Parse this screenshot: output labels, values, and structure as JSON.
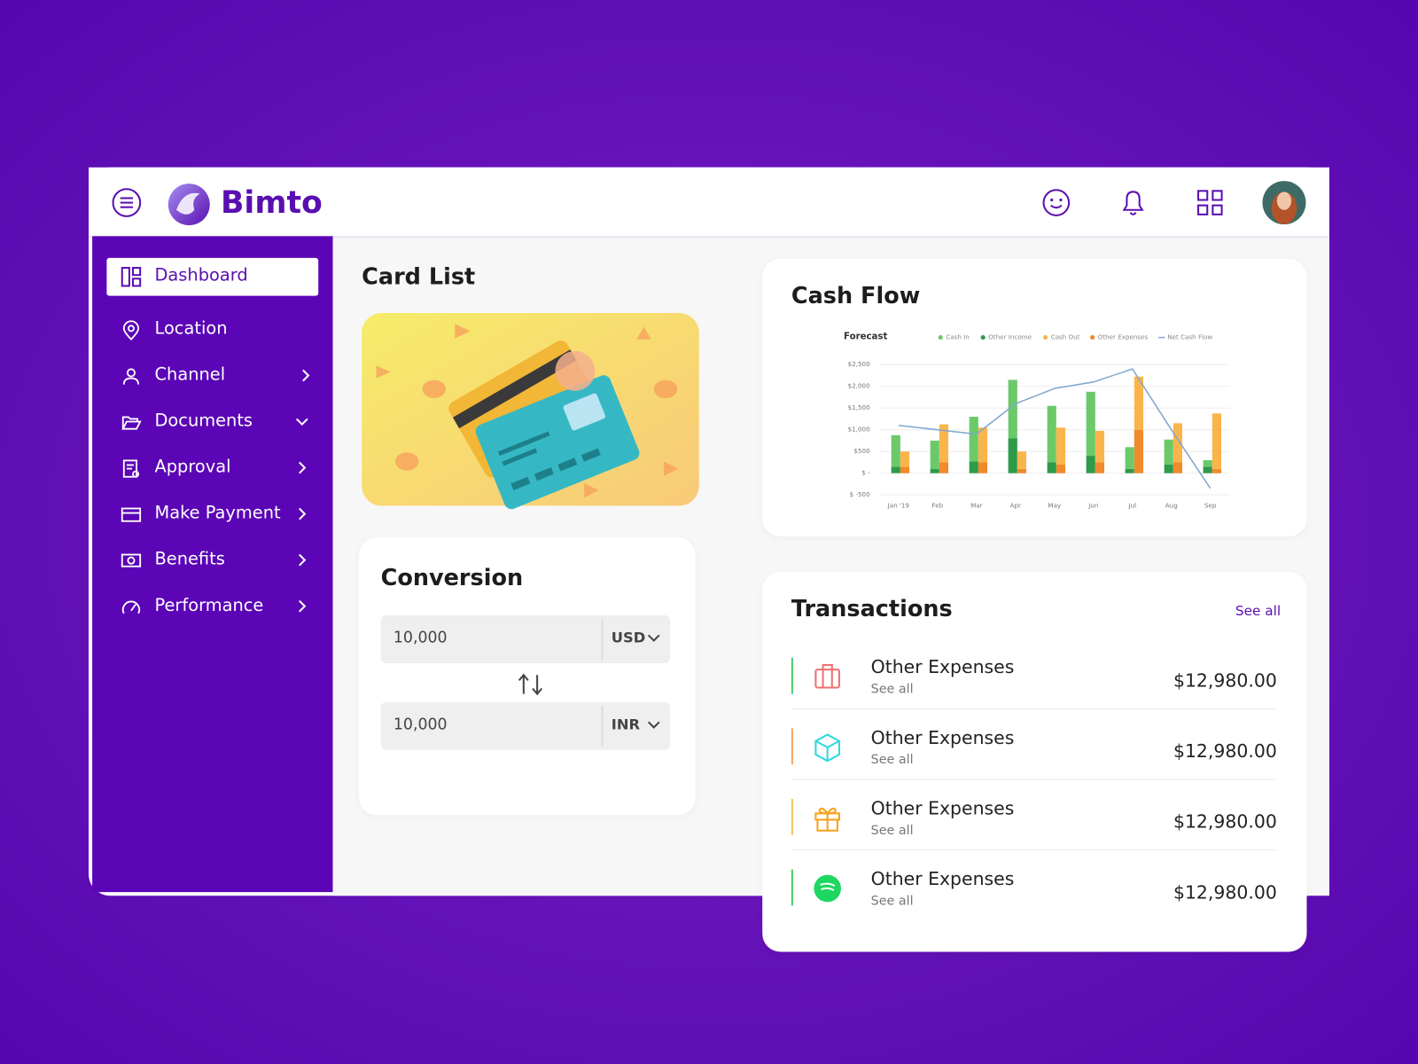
{
  "header": {
    "brand": "Bimto"
  },
  "sidebar": {
    "items": [
      "Dashboard",
      "Location",
      "Channel",
      "Documents",
      "Approval",
      "Make Payment",
      "Benefits",
      "Performance"
    ]
  },
  "card_list": {
    "title": "Card List"
  },
  "conversion": {
    "title": "Conversion",
    "from": {
      "amount": "10,000",
      "currency": "USD"
    },
    "to": {
      "amount": "10,000",
      "currency": "INR"
    }
  },
  "cash_flow": {
    "title": "Cash Flow"
  },
  "chart_data": {
    "type": "bar",
    "title": "Forecast",
    "categories": [
      "Jan '19",
      "Feb",
      "Mar",
      "Apr",
      "May",
      "Jun",
      "Jul",
      "Aug",
      "Sep"
    ],
    "series": [
      {
        "name": "Cash In",
        "color": "#6cc96a",
        "values": [
          725,
          650,
          1030,
          1350,
          1300,
          1475,
          500,
          575,
          150
        ]
      },
      {
        "name": "Other Income",
        "color": "#2e9a4a",
        "values": [
          150,
          100,
          270,
          800,
          250,
          400,
          100,
          200,
          150
        ]
      },
      {
        "name": "Cash Out",
        "color": "#f9b54c",
        "values": [
          350,
          875,
          800,
          400,
          850,
          725,
          1225,
          900,
          1275
        ]
      },
      {
        "name": "Other Expenses",
        "color": "#f08a2c",
        "values": [
          150,
          250,
          250,
          100,
          200,
          250,
          1000,
          250,
          100
        ]
      },
      {
        "name": "Net Cash Flow",
        "color": "#7fa7cf",
        "type": "line",
        "values": [
          1100,
          1000,
          900,
          1600,
          1950,
          2100,
          2400,
          1000,
          -350
        ]
      }
    ],
    "ylim": [
      -500,
      2500
    ],
    "yticks": [
      {
        "value": 2500,
        "label": "$2,500"
      },
      {
        "value": 2000,
        "label": "$2,000"
      },
      {
        "value": 1500,
        "label": "$1,500"
      },
      {
        "value": 1000,
        "label": "$1,000"
      },
      {
        "value": 500,
        "label": "$500"
      },
      {
        "value": 0,
        "label": "$ -"
      },
      {
        "value": -500,
        "label": "$ -500"
      }
    ],
    "grid": true
  },
  "transactions": {
    "title": "Transactions",
    "see_all": "See all",
    "rows": [
      {
        "name": "Other Expenses",
        "link": "See all",
        "amount": "$12,980.00"
      },
      {
        "name": "Other Expenses",
        "link": "See all",
        "amount": "$12,980.00"
      },
      {
        "name": "Other Expenses",
        "link": "See all",
        "amount": "$12,980.00"
      },
      {
        "name": "Other Expenses",
        "link": "See all",
        "amount": "$12,980.00"
      }
    ]
  }
}
